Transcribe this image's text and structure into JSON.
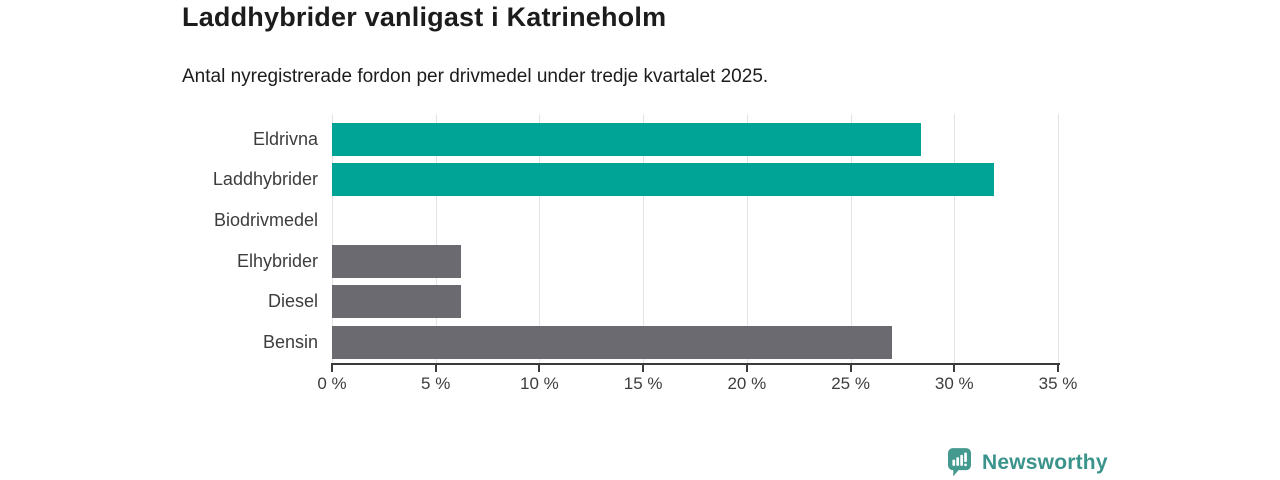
{
  "header": {
    "title": "Laddhybrider vanligast i Katrineholm",
    "subtitle": "Antal nyregistrerade fordon per drivmedel under tredje kvartalet 2025."
  },
  "chart_data": {
    "type": "bar",
    "orientation": "horizontal",
    "title": "Laddhybrider vanligast i Katrineholm",
    "subtitle": "Antal nyregistrerade fordon per drivmedel under tredje kvartalet 2025.",
    "categories": [
      "Eldrivna",
      "Laddhybrider",
      "Biodrivmedel",
      "Elhybrider",
      "Diesel",
      "Bensin"
    ],
    "values": [
      28.4,
      31.9,
      0,
      6.2,
      6.2,
      27.0
    ],
    "unit": "%",
    "bar_colors": [
      "#00a497",
      "#00a497",
      "#6b6a71",
      "#6b6a71",
      "#6b6a71",
      "#6b6a71"
    ],
    "xlim": [
      0,
      35
    ],
    "x_tick_values": [
      0,
      5,
      10,
      15,
      20,
      25,
      30,
      35
    ],
    "x_tick_labels": [
      "0 %",
      "5 %",
      "10 %",
      "15 %",
      "20 %",
      "25 %",
      "30 %",
      "35 %"
    ],
    "grid": true,
    "legend": false,
    "xlabel": "",
    "ylabel": ""
  },
  "footer": {
    "brand": "Newsworthy",
    "logo_icon": "newsworthy-bar-chart-speech-bubble"
  },
  "colors": {
    "background": "#ffffff",
    "bar_highlight": "#00a497",
    "bar_default": "#6b6a71",
    "gridline": "#e3e3e3",
    "axis": "#3b3b3b",
    "title_text": "#1c1c1c",
    "axis_text": "#3d3d3d",
    "brand_teal": "#3a948c",
    "brand_icon_teal": "#459a90"
  }
}
